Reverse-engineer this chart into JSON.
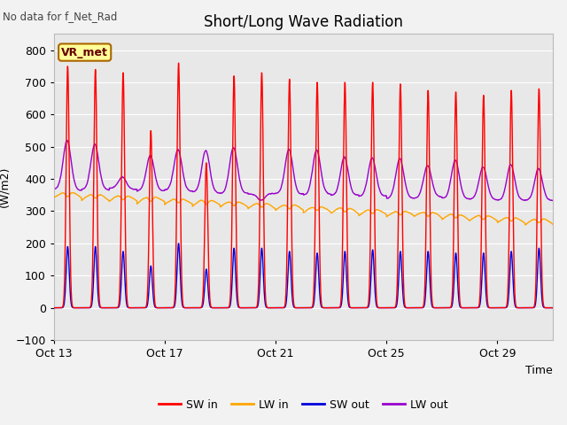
{
  "title": "Short/Long Wave Radiation",
  "xlabel": "Time",
  "ylabel": "(W/m2)",
  "ylim": [
    -100,
    850
  ],
  "yticks": [
    -100,
    0,
    100,
    200,
    300,
    400,
    500,
    600,
    700,
    800
  ],
  "note": "No data for f_Net_Rad",
  "box_label": "VR_met",
  "bg_color": "#e8e8e8",
  "legend": [
    "SW in",
    "LW in",
    "SW out",
    "LW out"
  ],
  "colors": {
    "SW in": "#ff0000",
    "LW in": "#ffa500",
    "SW out": "#0000dd",
    "LW out": "#9900cc"
  },
  "line_width": 1.0,
  "n_days": 18,
  "figsize": [
    6.4,
    4.8
  ],
  "dpi": 100,
  "xtick_labels": [
    "Oct 13",
    "Oct 17",
    "Oct 21",
    "Oct 25",
    "Oct 29"
  ],
  "xtick_positions": [
    0,
    4,
    8,
    12,
    16
  ]
}
